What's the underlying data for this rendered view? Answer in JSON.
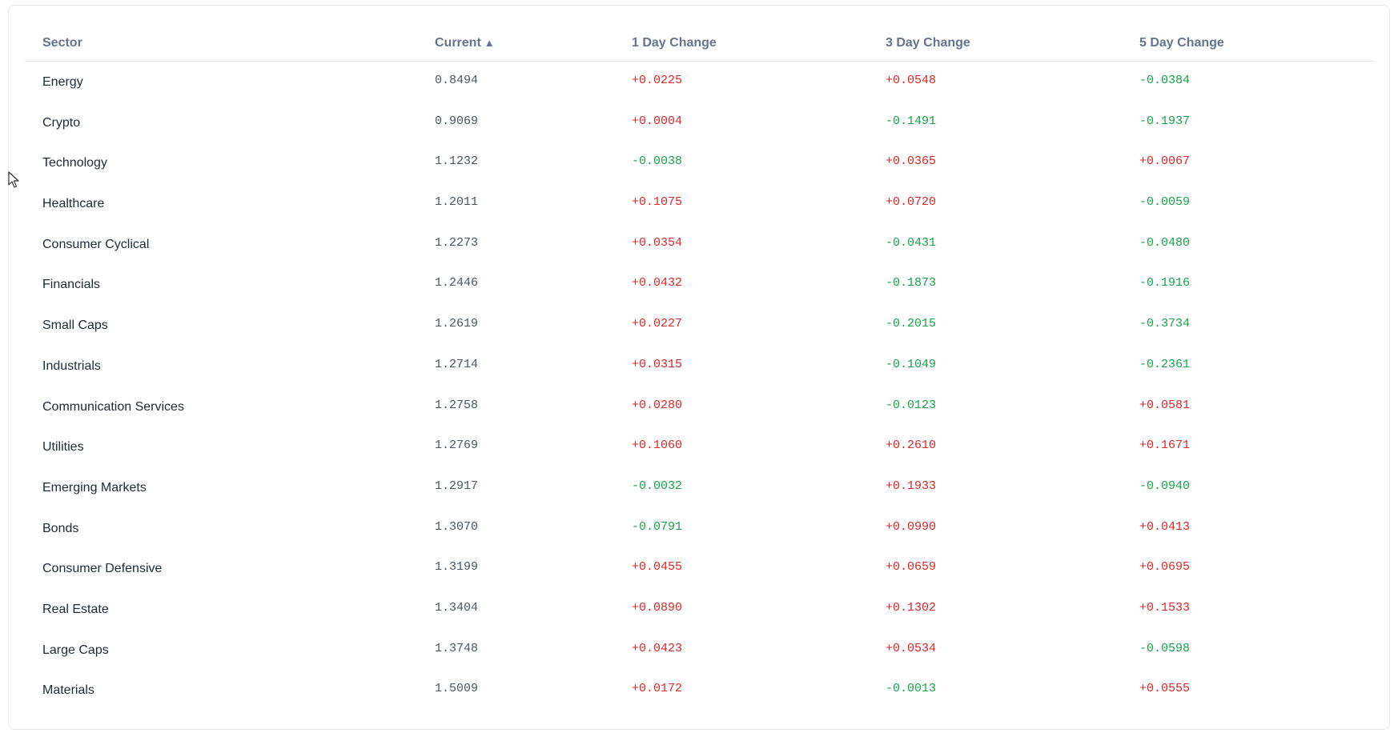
{
  "table": {
    "headers": {
      "sector": "Sector",
      "current": "Current",
      "current_sort_indicator": "▲",
      "day1": "1 Day Change",
      "day3": "3 Day Change",
      "day5": "5 Day Change"
    },
    "colors": {
      "positive": "#dc2626",
      "negative": "#16a34a",
      "header_text": "#64748b"
    },
    "rows": [
      {
        "sector": "Energy",
        "current": "0.8494",
        "d1": "+0.0225",
        "d3": "+0.0548",
        "d5": "-0.0384"
      },
      {
        "sector": "Crypto",
        "current": "0.9069",
        "d1": "+0.0004",
        "d3": "-0.1491",
        "d5": "-0.1937"
      },
      {
        "sector": "Technology",
        "current": "1.1232",
        "d1": "-0.0038",
        "d3": "+0.0365",
        "d5": "+0.0067"
      },
      {
        "sector": "Healthcare",
        "current": "1.2011",
        "d1": "+0.1075",
        "d3": "+0.0720",
        "d5": "-0.0059"
      },
      {
        "sector": "Consumer Cyclical",
        "current": "1.2273",
        "d1": "+0.0354",
        "d3": "-0.0431",
        "d5": "-0.0480"
      },
      {
        "sector": "Financials",
        "current": "1.2446",
        "d1": "+0.0432",
        "d3": "-0.1873",
        "d5": "-0.1916"
      },
      {
        "sector": "Small Caps",
        "current": "1.2619",
        "d1": "+0.0227",
        "d3": "-0.2015",
        "d5": "-0.3734"
      },
      {
        "sector": "Industrials",
        "current": "1.2714",
        "d1": "+0.0315",
        "d3": "-0.1049",
        "d5": "-0.2361"
      },
      {
        "sector": "Communication Services",
        "current": "1.2758",
        "d1": "+0.0280",
        "d3": "-0.0123",
        "d5": "+0.0581"
      },
      {
        "sector": "Utilities",
        "current": "1.2769",
        "d1": "+0.1060",
        "d3": "+0.2610",
        "d5": "+0.1671"
      },
      {
        "sector": "Emerging Markets",
        "current": "1.2917",
        "d1": "-0.0032",
        "d3": "+0.1933",
        "d5": "-0.0940"
      },
      {
        "sector": "Bonds",
        "current": "1.3070",
        "d1": "-0.0791",
        "d3": "+0.0990",
        "d5": "+0.0413"
      },
      {
        "sector": "Consumer Defensive",
        "current": "1.3199",
        "d1": "+0.0455",
        "d3": "+0.0659",
        "d5": "+0.0695"
      },
      {
        "sector": "Real Estate",
        "current": "1.3404",
        "d1": "+0.0890",
        "d3": "+0.1302",
        "d5": "+0.1533"
      },
      {
        "sector": "Large Caps",
        "current": "1.3748",
        "d1": "+0.0423",
        "d3": "+0.0534",
        "d5": "-0.0598"
      },
      {
        "sector": "Materials",
        "current": "1.5009",
        "d1": "+0.0172",
        "d3": "-0.0013",
        "d5": "+0.0555"
      }
    ]
  },
  "cursor_icon": "mouse-pointer-icon"
}
